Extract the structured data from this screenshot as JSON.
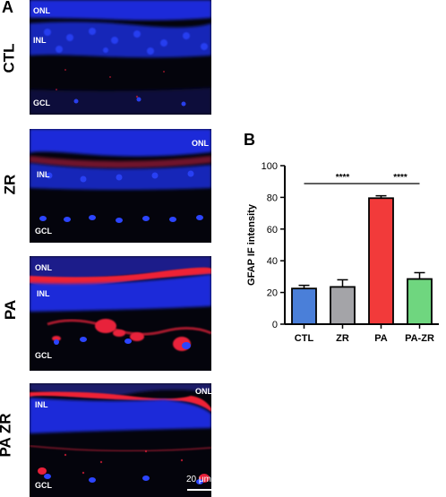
{
  "panel_a": {
    "letter": "A",
    "rows": [
      {
        "label": "CTL",
        "layers": {
          "onl": "ONL",
          "inl": "INL",
          "gcl": "GCL"
        }
      },
      {
        "label": "ZR",
        "layers": {
          "onl": "ONL",
          "inl": "INL",
          "gcl": "GCL"
        }
      },
      {
        "label": "PA",
        "layers": {
          "onl": "ONL",
          "inl": "INL",
          "gcl": "GCL"
        }
      },
      {
        "label": "PA ZR",
        "layers": {
          "onl": "ONL",
          "inl": "INL",
          "gcl": "GCL"
        }
      }
    ],
    "scale_bar": "20 μm",
    "colors": {
      "nuclei": "#1a2bd9",
      "gfap": "#e8203a",
      "background": "#04040c"
    }
  },
  "panel_b": {
    "letter": "B"
  },
  "chart_data": {
    "type": "bar",
    "categories": [
      "CTL",
      "ZR",
      "PA",
      "PA-ZR"
    ],
    "values": [
      22.5,
      23.5,
      79.5,
      28.5
    ],
    "errors": [
      2,
      4.5,
      1.5,
      4
    ],
    "colors": [
      "#4a7fd9",
      "#a4a4a8",
      "#f23a3a",
      "#6fd67f"
    ],
    "xlabel": "",
    "ylabel": "GFAP IF intensity",
    "ylim": [
      0,
      100
    ],
    "yticks": [
      0,
      20,
      40,
      60,
      80,
      100
    ],
    "grid": false,
    "significance": [
      {
        "from": "CTL",
        "to": "PA",
        "label": "****"
      },
      {
        "from": "PA",
        "to": "PA-ZR",
        "label": "****"
      }
    ]
  }
}
